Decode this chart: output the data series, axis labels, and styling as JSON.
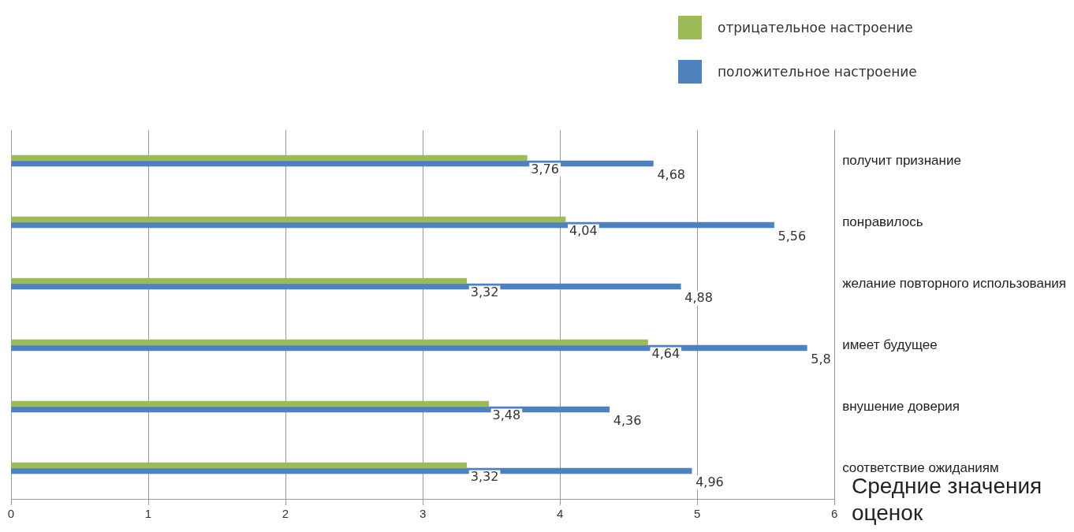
{
  "chart_data": {
    "type": "bar",
    "orientation": "horizontal",
    "xlabel": "Средние значения оценок",
    "categories": [
      "получит признание",
      "понравилось",
      "желание повторного использования",
      "имеет будущее",
      "внушение доверия",
      "соответствие ожиданиям"
    ],
    "series": [
      {
        "name": "отрицательное настроение",
        "color": "#9bbb59",
        "values": [
          3.76,
          4.04,
          3.32,
          4.64,
          3.48,
          3.32
        ],
        "value_labels": [
          "3,76",
          "4,04",
          "3,32",
          "4,64",
          "3,48",
          "3,32"
        ]
      },
      {
        "name": "положительное настроение",
        "color": "#4f81bd",
        "values": [
          4.68,
          5.56,
          4.88,
          5.8,
          4.36,
          4.96
        ],
        "value_labels": [
          "4,68",
          "5,56",
          "4,88",
          "5,8",
          "4,36",
          "4,96"
        ]
      }
    ],
    "xlim": [
      0,
      6
    ],
    "xticks": [
      0,
      1,
      2,
      3,
      4,
      5,
      6
    ],
    "grid": "x",
    "legend": "top right"
  }
}
